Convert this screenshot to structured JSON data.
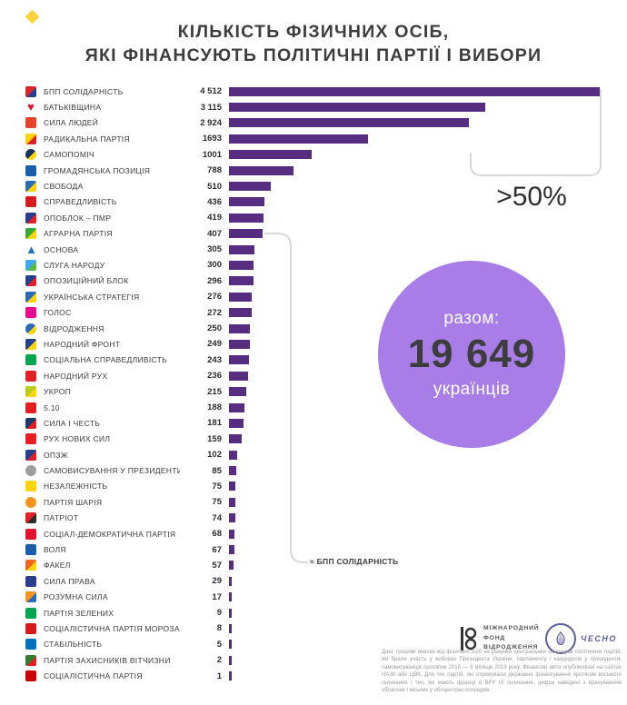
{
  "colors": {
    "bar": "#562d80",
    "circle": "#a87de8",
    "title": "#3d3d3d",
    "text": "#3a3a3a",
    "value": "#2b2b2b",
    "bracket": "#d8d8d8",
    "chesno": "#5c5c9e",
    "muted": "#9b9b9b",
    "mark": "#ffd23a"
  },
  "title": {
    "line1": "КІЛЬКІСТЬ ФІЗИЧНИХ ОСІБ,",
    "line2": "ЯКІ ФІНАНСУЮТЬ ПОЛІТИЧНІ ПАРТІЇ І ВИБОРИ"
  },
  "chart_data": {
    "type": "bar",
    "orientation": "horizontal",
    "title": "Кількість фізичних осіб, які фінансують політичні партії і вибори",
    "xlim": [
      0,
      4512
    ],
    "grid": false,
    "legend": false,
    "categories": [
      "БПП СОЛІДАРНІСТЬ",
      "БАТЬКІВЩИНА",
      "СИЛА ЛЮДЕЙ",
      "РАДИКАЛЬНА ПАРТІЯ",
      "САМОПОМІЧ",
      "ГРОМАДЯНСЬКА ПОЗИЦІЯ",
      "СВОБОДА",
      "СПРАВЕДЛИВІСТЬ",
      "ОПОБЛОК – ПМР",
      "АГРАРНА ПАРТІЯ",
      "ОСНОВА",
      "СЛУГА НАРОДУ",
      "ОПОЗИЦІЙНИЙ БЛОК",
      "УКРАЇНСЬКА СТРАТЕГІЯ",
      "ГОЛОС",
      "ВІДРОДЖЕННЯ",
      "НАРОДНИЙ ФРОНТ",
      "СОЦІАЛЬНА СПРАВЕДЛИВІСТЬ",
      "НАРОДНИЙ РУХ",
      "УКРОП",
      "5.10",
      "СИЛА І ЧЕСТЬ",
      "РУХ НОВИХ СИЛ",
      "ОПЗЖ",
      "САМОВИСУВАННЯ У ПРЕЗИДЕНТИ",
      "НЕЗАЛЕЖНІСТЬ",
      "ПАРТІЯ ШАРІЯ",
      "ПАТРІОТ",
      "СОЦІАЛ-ДЕМОКРАТИЧНА ПАРТІЯ",
      "ВОЛЯ",
      "ФАКЕЛ",
      "СИЛА ПРАВА",
      "РОЗУМНА СИЛА",
      "ПАРТІЯ ЗЕЛЕНИХ",
      "СОЦІАЛІСТИЧНА ПАРТІЯ МОРОЗА",
      "СТАБІЛЬНІСТЬ",
      "ПАРТІЯ ЗАХИСНИКІВ ВІТЧИЗНИ",
      "СОЦІАЛІСТИЧНА ПАРТІЯ"
    ],
    "values": [
      4512,
      3115,
      2924,
      1693,
      1001,
      788,
      510,
      436,
      419,
      407,
      305,
      300,
      296,
      276,
      272,
      250,
      249,
      243,
      236,
      215,
      188,
      181,
      159,
      102,
      85,
      75,
      75,
      74,
      68,
      67,
      57,
      29,
      17,
      9,
      8,
      5,
      2,
      1
    ],
    "rows": [
      {
        "label": "БПП СОЛІДАРНІСТЬ",
        "value": "4 512",
        "v": 4512,
        "shape": "square",
        "c1": "#d9252b",
        "c2": "#24408e"
      },
      {
        "label": "БАТЬКІВЩИНА",
        "value": "3 115",
        "v": 3115,
        "shape": "glyph",
        "glyph": "♥",
        "c1": "#e8112d"
      },
      {
        "label": "СИЛА ЛЮДЕЙ",
        "value": "2 924",
        "v": 2924,
        "shape": "square",
        "c1": "#e8412c"
      },
      {
        "label": "РАДИКАЛЬНА ПАРТІЯ",
        "value": "1693",
        "v": 1693,
        "shape": "square",
        "c1": "#ffd400",
        "c2": "#e31e24"
      },
      {
        "label": "САМОПОМІЧ",
        "value": "1001",
        "v": 1001,
        "shape": "circle",
        "c1": "#16325c",
        "c2": "#ffd400"
      },
      {
        "label": "ГРОМАДЯНСЬКА ПОЗИЦІЯ",
        "value": "788",
        "v": 788,
        "shape": "square",
        "c1": "#1a5dad"
      },
      {
        "label": "СВОБОДА",
        "value": "510",
        "v": 510,
        "shape": "square",
        "c1": "#2b6cb8",
        "c2": "#ffd400"
      },
      {
        "label": "СПРАВЕДЛИВІСТЬ",
        "value": "436",
        "v": 436,
        "shape": "square",
        "c1": "#d71920"
      },
      {
        "label": "ОПОБЛОК – ПМР",
        "value": "419",
        "v": 419,
        "shape": "square",
        "c1": "#2a3d8f",
        "c2": "#e31e24"
      },
      {
        "label": "АГРАРНА ПАРТІЯ",
        "value": "407",
        "v": 407,
        "shape": "square",
        "c1": "#3aaa35",
        "c2": "#ffd400"
      },
      {
        "label": "ОСНОВА",
        "value": "305",
        "v": 305,
        "shape": "glyph",
        "glyph": "▲",
        "c1": "#1b75bb"
      },
      {
        "label": "СЛУГА НАРОДУ",
        "value": "300",
        "v": 300,
        "shape": "square",
        "c1": "#3fa9f5",
        "c2": "#58b947"
      },
      {
        "label": "ОПОЗИЦІЙНИЙ БЛОК",
        "value": "296",
        "v": 296,
        "shape": "square",
        "c1": "#24408e",
        "c2": "#e31e24"
      },
      {
        "label": "УКРАЇНСЬКА СТРАТЕГІЯ",
        "value": "276",
        "v": 276,
        "shape": "square",
        "c1": "#2b6cb8",
        "c2": "#ffd400"
      },
      {
        "label": "ГОЛОС",
        "value": "272",
        "v": 272,
        "shape": "square",
        "c1": "#ec008c"
      },
      {
        "label": "ВІДРОДЖЕННЯ",
        "value": "250",
        "v": 250,
        "shape": "circle",
        "c1": "#2b6cb8",
        "c2": "#ffd400"
      },
      {
        "label": "НАРОДНИЙ ФРОНТ",
        "value": "249",
        "v": 249,
        "shape": "square",
        "c1": "#24408e",
        "c2": "#ffd400"
      },
      {
        "label": "СОЦІАЛЬНА СПРАВЕДЛИВІСТЬ",
        "value": "243",
        "v": 243,
        "shape": "square",
        "c1": "#00a651"
      },
      {
        "label": "НАРОДНИЙ РУХ",
        "value": "236",
        "v": 236,
        "shape": "square",
        "c1": "#e31e24"
      },
      {
        "label": "УКРОП",
        "value": "215",
        "v": 215,
        "shape": "square",
        "c1": "#b5cc18",
        "c2": "#ffd400"
      },
      {
        "label": "5.10",
        "value": "188",
        "v": 188,
        "shape": "square",
        "c1": "#e31e24"
      },
      {
        "label": "СИЛА І ЧЕСТЬ",
        "value": "181",
        "v": 181,
        "shape": "square",
        "c1": "#1b3a6b",
        "c2": "#e31e24"
      },
      {
        "label": "РУХ НОВИХ СИЛ",
        "value": "159",
        "v": 159,
        "shape": "square",
        "c1": "#ed1c24"
      },
      {
        "label": "ОПЗЖ",
        "value": "102",
        "v": 102,
        "shape": "square",
        "c1": "#24408e",
        "c2": "#e31e24"
      },
      {
        "label": "САМОВИСУВАННЯ У ПРЕЗИДЕНТИ",
        "value": "85",
        "v": 85,
        "shape": "circle",
        "c1": "#9e9e9e"
      },
      {
        "label": "НЕЗАЛЕЖНІСТЬ",
        "value": "75",
        "v": 75,
        "shape": "square",
        "c1": "#ffd400"
      },
      {
        "label": "ПАРТІЯ ШАРІЯ",
        "value": "75",
        "v": 75,
        "shape": "circle",
        "c1": "#f7941d"
      },
      {
        "label": "ПАТРІОТ",
        "value": "74",
        "v": 74,
        "shape": "square",
        "c1": "#e31e24",
        "c2": "#2b2b2b"
      },
      {
        "label": "СОЦІАЛ-ДЕМОКРАТИЧНА ПАРТІЯ",
        "value": "68",
        "v": 68,
        "shape": "square",
        "c1": "#e8112d"
      },
      {
        "label": "ВОЛЯ",
        "value": "67",
        "v": 67,
        "shape": "square",
        "c1": "#1a5dad"
      },
      {
        "label": "ФАКЕЛ",
        "value": "57",
        "v": 57,
        "shape": "square",
        "c1": "#f26522",
        "c2": "#ffd400"
      },
      {
        "label": "СИЛА ПРАВА",
        "value": "29",
        "v": 29,
        "shape": "square",
        "c1": "#2a3d8f"
      },
      {
        "label": "РОЗУМНА СИЛА",
        "value": "17",
        "v": 17,
        "shape": "square",
        "c1": "#f7941d",
        "c2": "#2b6cb8"
      },
      {
        "label": "ПАРТІЯ ЗЕЛЕНИХ",
        "value": "9",
        "v": 9,
        "shape": "square",
        "c1": "#00a550"
      },
      {
        "label": "СОЦІАЛІСТИЧНА ПАРТІЯ МОРОЗА",
        "value": "8",
        "v": 8,
        "shape": "square",
        "c1": "#d7191c"
      },
      {
        "label": "СТАБІЛЬНІСТЬ",
        "value": "5",
        "v": 5,
        "shape": "square",
        "c1": "#0072bc"
      },
      {
        "label": "ПАРТІЯ ЗАХИСНИКІВ ВІТЧИЗНИ",
        "value": "2",
        "v": 2,
        "shape": "square",
        "c1": "#2e7d32",
        "c2": "#e31e24"
      },
      {
        "label": "СОЦІАЛІСТИЧНА ПАРТІЯ",
        "value": "1",
        "v": 1,
        "shape": "square",
        "c1": "#cc0000"
      }
    ],
    "annotations": {
      "top_share_label": ">50%",
      "approx_label": "≈  БПП СОЛІДАРНІСТЬ",
      "total": {
        "label": "разом:",
        "value": "19 649",
        "unit": "українців"
      }
    }
  },
  "footer": {
    "irf": {
      "line1": "МІЖНАРОДНИЙ",
      "line2": "ФОНД",
      "line3": "ВІДРОДЖЕННЯ"
    },
    "chesno_label": "ЧЕСНО",
    "disclaimer": "Дані: грошові внески від фізичних осіб на рахунки центральних осередків політичних партій, які брали участь у виборах Президента України, парламенту і кандидатів у президенти-самовисуванців протягом 2018 — 9 місяців 2019 року. Фінансові звіти опубліковані на сайтах НАЗК або ЦВК. Для тих партій, які отримували державне фінансування протягом восьмого скликання і тих, які мають фракції в ВРУ ІХ скликання, цифри наведені з врахуванням обласних і міських у облцентрах осередків."
  }
}
